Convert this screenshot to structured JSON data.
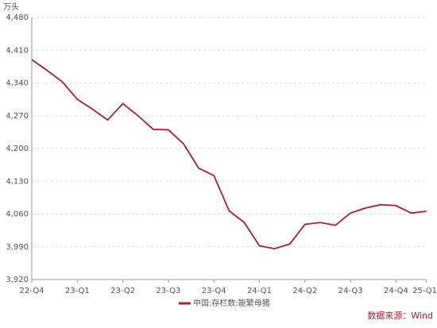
{
  "chart_data": {
    "type": "line",
    "unit": "万头",
    "categories": [
      "22-Q4",
      null,
      null,
      "23-Q1",
      null,
      null,
      "23-Q2",
      null,
      null,
      "23-Q3",
      null,
      null,
      "23-Q4",
      null,
      null,
      "24-Q1",
      null,
      null,
      "24-Q2",
      null,
      null,
      "24-Q3",
      null,
      null,
      "24-Q4",
      null,
      "25-Q1"
    ],
    "series": [
      {
        "name": "中国:存栏数:能繁母猪",
        "color": "#b01c2e",
        "values": [
          4390,
          4367,
          4343,
          4305,
          4284,
          4261,
          4296,
          4270,
          4241,
          4240,
          4210,
          4158,
          4142,
          4067,
          4042,
          3992,
          3986,
          3996,
          4038,
          4042,
          4036,
          4062,
          4073,
          4080,
          4078,
          4062,
          4066
        ]
      }
    ],
    "ylim": [
      3920,
      4480
    ],
    "yticks": [
      {
        "value": 3920,
        "label": "3,920"
      },
      {
        "value": 3990,
        "label": "3,990"
      },
      {
        "value": 4060,
        "label": "4,060"
      },
      {
        "value": 4130,
        "label": "4,130"
      },
      {
        "value": 4200,
        "label": "4,200"
      },
      {
        "value": 4270,
        "label": "4,270"
      },
      {
        "value": 4340,
        "label": "4,340"
      },
      {
        "value": 4410,
        "label": "4,410"
      },
      {
        "value": 4480,
        "label": "4,480"
      }
    ],
    "grid": true,
    "source": "数据来源：Wind"
  }
}
